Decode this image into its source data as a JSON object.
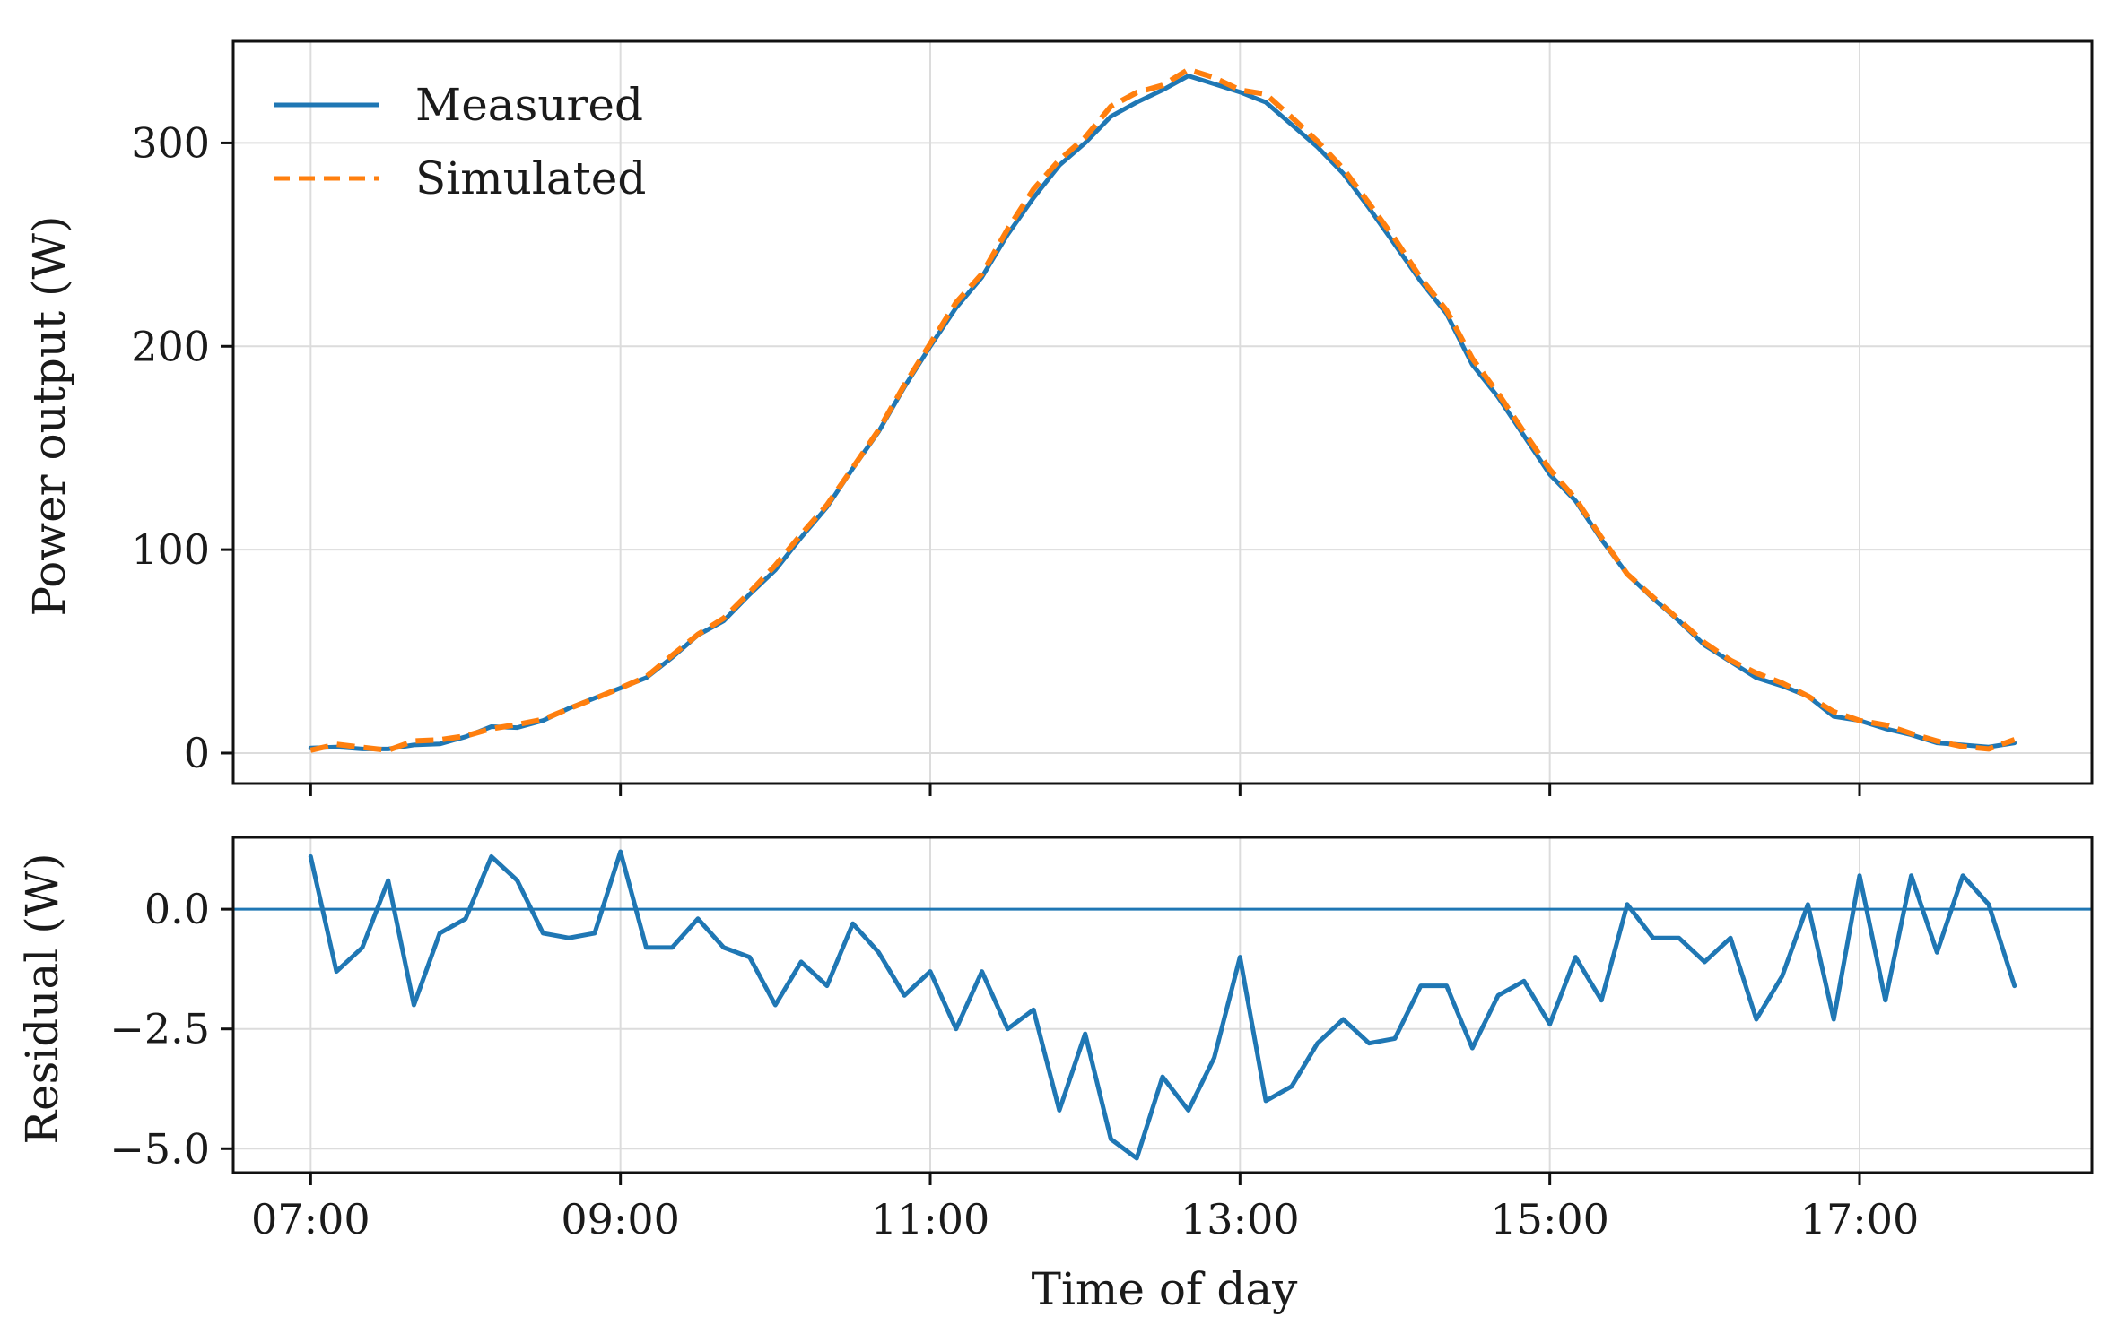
{
  "chart_data": [
    {
      "type": "line",
      "panel": "top",
      "title": "",
      "xlabel": "",
      "ylabel": "Power output (W)",
      "xlim": [
        6.5,
        18.5
      ],
      "ylim": [
        -15,
        350
      ],
      "yticks": [
        0,
        100,
        200,
        300
      ],
      "ytick_labels": [
        "0",
        "100",
        "200",
        "300"
      ],
      "grid": true,
      "legend": {
        "location": "top-left",
        "entries": [
          "Measured",
          "Simulated"
        ]
      },
      "x_hours_start": 7.0,
      "x_step_hours": 0.1667,
      "series": [
        {
          "name": "Measured",
          "color": "#1f77b4",
          "style": "solid",
          "values": [
            2.5,
            3.0,
            2.0,
            2.0,
            4.0,
            4.5,
            8.0,
            13.0,
            12.5,
            16.0,
            22.0,
            27.0,
            32.0,
            37.0,
            47.0,
            58.0,
            65.0,
            78.0,
            90.0,
            106.0,
            121.0,
            140.0,
            158.0,
            180.0,
            200.0,
            219.0,
            234.0,
            255.0,
            273.0,
            289.0,
            300.0,
            313.0,
            320.0,
            326.0,
            333.0,
            329.0,
            325.0,
            320.0,
            309.0,
            298.0,
            285.0,
            268.0,
            250.0,
            232.0,
            216.0,
            191.0,
            175.0,
            156.0,
            137.0,
            124.0,
            105.0,
            88.0,
            76.0,
            65.0,
            53.0,
            45.0,
            37.0,
            33.0,
            28.0,
            18.0,
            16.0,
            12.0,
            9.0,
            5.0,
            4.0,
            3.0,
            5.0
          ]
        },
        {
          "name": "Simulated",
          "color": "#ff7f0e",
          "style": "dashed",
          "values": [
            1.4,
            4.3,
            2.8,
            1.4,
            6.0,
            6.5,
            8.4,
            12.0,
            14.0,
            16.5,
            21.8,
            26.8,
            32.0,
            37.5,
            48.0,
            58.3,
            66.3,
            79.0,
            92.3,
            107.5,
            122.0,
            140.3,
            158.8,
            181.0,
            201.3,
            221.5,
            235.6,
            257.6,
            277.2,
            291.6,
            302.7,
            318.0,
            324.8,
            328.3,
            336.1,
            332.1,
            326.0,
            324.0,
            312.6,
            300.8,
            287.3,
            270.3,
            252.8,
            233.6,
            217.6,
            194.0,
            176.8,
            157.8,
            139.4,
            125.0,
            106.0,
            88.0,
            76.6,
            65.6,
            54.2,
            45.6,
            39.3,
            34.4,
            28.0,
            20.3,
            16.0,
            13.8,
            9.6,
            5.9,
            3.2,
            2.0,
            6.6
          ]
        }
      ]
    },
    {
      "type": "line",
      "panel": "bottom",
      "title": "",
      "xlabel": "Time of day",
      "ylabel": "Residual (W)",
      "xlim": [
        6.5,
        18.5
      ],
      "ylim": [
        -5.5,
        1.5
      ],
      "yticks": [
        0.0,
        -2.5,
        -5.0
      ],
      "ytick_labels": [
        "0.0",
        "−2.5",
        "−5.0"
      ],
      "xticks": [
        7,
        9,
        11,
        13,
        15,
        17
      ],
      "xtick_labels": [
        "07:00",
        "09:00",
        "11:00",
        "13:00",
        "15:00",
        "17:00"
      ],
      "grid": true,
      "reference_line": {
        "y": 0.0,
        "color": "#1f77b4"
      },
      "x_hours_start": 7.0,
      "x_step_hours": 0.1667,
      "series": [
        {
          "name": "Residual",
          "color": "#1f77b4",
          "style": "solid",
          "values": [
            1.1,
            -1.3,
            -0.8,
            0.6,
            -2.0,
            -0.5,
            -0.2,
            1.1,
            0.6,
            -0.5,
            -0.6,
            -0.5,
            1.2,
            -0.8,
            -0.8,
            -0.2,
            -0.8,
            -1.0,
            -2.0,
            -1.1,
            -1.6,
            -0.3,
            -0.9,
            -1.8,
            -1.3,
            -2.5,
            -1.3,
            -2.5,
            -2.1,
            -4.2,
            -2.6,
            -4.8,
            -5.2,
            -3.5,
            -4.2,
            -3.1,
            -1.0,
            -4.0,
            -3.7,
            -2.8,
            -2.3,
            -2.8,
            -2.7,
            -1.6,
            -1.6,
            -2.9,
            -1.8,
            -1.5,
            -2.4,
            -1.0,
            -1.9,
            0.1,
            -0.6,
            -0.6,
            -1.1,
            -0.6,
            -2.3,
            -1.4,
            0.1,
            -2.3,
            0.7,
            -1.9,
            0.7,
            -0.9,
            0.7,
            0.1,
            -1.6
          ]
        }
      ]
    }
  ]
}
